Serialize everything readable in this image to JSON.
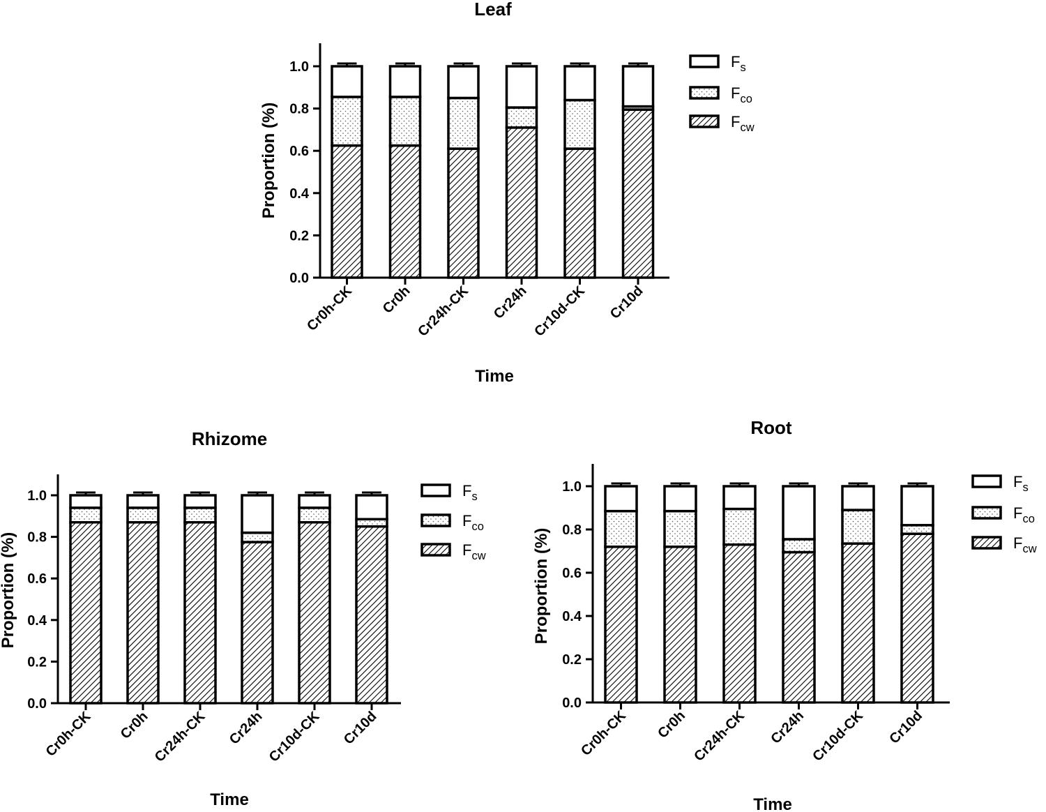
{
  "chart_data": [
    {
      "type": "bar",
      "stacked": true,
      "title": "Leaf",
      "xlabel": "Time",
      "ylabel": "Proportion (%)",
      "ylim": [
        0,
        1.1
      ],
      "yticks": [
        "0.0",
        "0.2",
        "0.4",
        "0.6",
        "0.8",
        "1.0"
      ],
      "categories": [
        "Cr0h-CK",
        "Cr0h",
        "Cr24h-CK",
        "Cr24h",
        "Cr10d-CK",
        "Cr10d"
      ],
      "series": [
        {
          "name": "Fcw",
          "values": [
            0.625,
            0.625,
            0.61,
            0.71,
            0.61,
            0.795
          ]
        },
        {
          "name": "Fco",
          "values": [
            0.23,
            0.23,
            0.24,
            0.095,
            0.23,
            0.015
          ]
        },
        {
          "name": "Fs",
          "values": [
            0.145,
            0.145,
            0.15,
            0.195,
            0.16,
            0.19
          ]
        }
      ],
      "legend": [
        {
          "main": "F",
          "sub": "s"
        },
        {
          "main": "F",
          "sub": "co"
        },
        {
          "main": "F",
          "sub": "cw"
        }
      ],
      "legend_position": "right"
    },
    {
      "type": "bar",
      "stacked": true,
      "title": "Rhizome",
      "xlabel": "Time",
      "ylabel": "Proportion (%)",
      "ylim": [
        0,
        1.1
      ],
      "yticks": [
        "0.0",
        "0.2",
        "0.4",
        "0.6",
        "0.8",
        "1.0"
      ],
      "categories": [
        "Cr0h-CK",
        "Cr0h",
        "Cr24h-CK",
        "Cr24h",
        "Cr10d-CK",
        "Cr10d"
      ],
      "series": [
        {
          "name": "Fcw",
          "values": [
            0.87,
            0.87,
            0.87,
            0.775,
            0.87,
            0.85
          ]
        },
        {
          "name": "Fco",
          "values": [
            0.07,
            0.07,
            0.07,
            0.045,
            0.07,
            0.035
          ]
        },
        {
          "name": "Fs",
          "values": [
            0.06,
            0.06,
            0.06,
            0.18,
            0.06,
            0.115
          ]
        }
      ],
      "legend": [
        {
          "main": "F",
          "sub": "s"
        },
        {
          "main": "F",
          "sub": "co"
        },
        {
          "main": "F",
          "sub": "cw"
        }
      ],
      "legend_position": "right"
    },
    {
      "type": "bar",
      "stacked": true,
      "title": "Root",
      "xlabel": "Time",
      "ylabel": "Proportion (%)",
      "ylim": [
        0,
        1.1
      ],
      "yticks": [
        "0.0",
        "0.2",
        "0.4",
        "0.6",
        "0.8",
        "1.0"
      ],
      "categories": [
        "Cr0h-CK",
        "Cr0h",
        "Cr24h-CK",
        "Cr24h",
        "Cr10d-CK",
        "Cr10d"
      ],
      "series": [
        {
          "name": "Fcw",
          "values": [
            0.72,
            0.72,
            0.73,
            0.695,
            0.735,
            0.78
          ]
        },
        {
          "name": "Fco",
          "values": [
            0.165,
            0.165,
            0.165,
            0.06,
            0.155,
            0.04
          ]
        },
        {
          "name": "Fs",
          "values": [
            0.115,
            0.115,
            0.105,
            0.245,
            0.11,
            0.18
          ]
        }
      ],
      "legend": [
        {
          "main": "F",
          "sub": "s"
        },
        {
          "main": "F",
          "sub": "co"
        },
        {
          "main": "F",
          "sub": "cw"
        }
      ],
      "legend_position": "right"
    }
  ]
}
